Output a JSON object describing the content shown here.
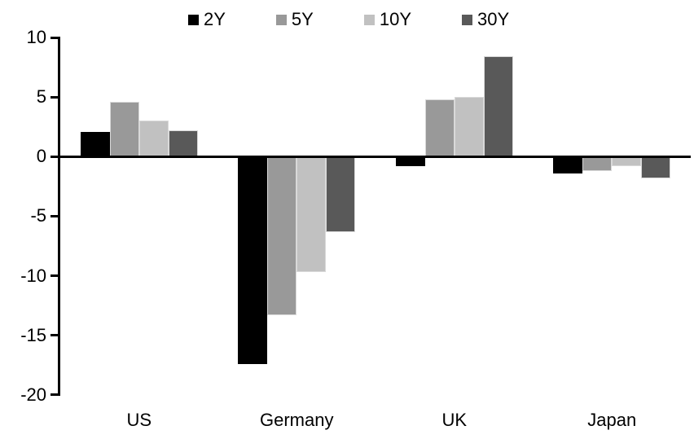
{
  "chart_data": {
    "type": "bar",
    "title": "",
    "categories": [
      "US",
      "Germany",
      "UK",
      "Japan"
    ],
    "series": [
      {
        "name": "2Y",
        "color": "#000000",
        "values": [
          2.1,
          -17.4,
          -0.8,
          -1.4
        ]
      },
      {
        "name": "5Y",
        "color": "#999999",
        "values": [
          4.6,
          -13.3,
          4.8,
          -1.2
        ]
      },
      {
        "name": "10Y",
        "color": "#c1c1c1",
        "values": [
          3.0,
          -9.7,
          5.0,
          -0.8
        ]
      },
      {
        "name": "30Y",
        "color": "#595959",
        "values": [
          2.2,
          -6.3,
          8.4,
          -1.8
        ]
      }
    ],
    "y_axis": {
      "min": -20,
      "max": 10,
      "step": 5,
      "ticks": [
        10,
        5,
        0,
        -5,
        -10,
        -15,
        -20
      ],
      "tick_labels": [
        "10",
        "5",
        "0",
        "-5",
        "-10",
        "-15",
        "-20"
      ]
    },
    "legend": {
      "position": "top",
      "entries": [
        "2Y",
        "5Y",
        "10Y",
        "30Y"
      ]
    },
    "grid": false,
    "background": "#ffffff",
    "axis_color": "#000000",
    "bar_border_color": "#d9d9d9"
  }
}
